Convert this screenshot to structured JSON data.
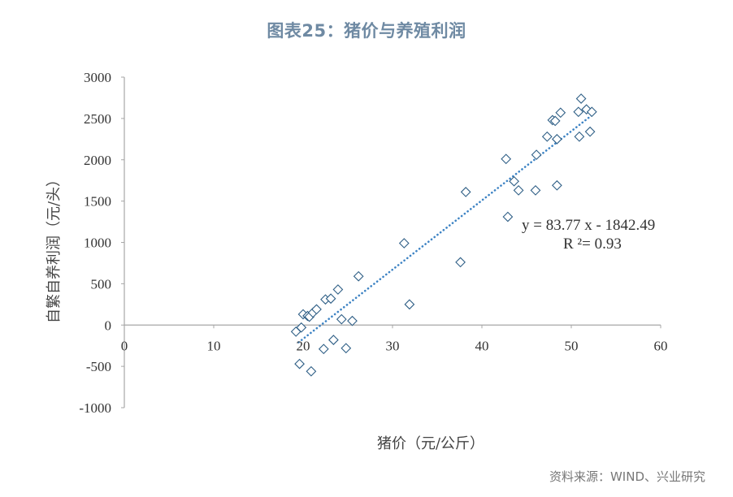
{
  "chart_data": {
    "type": "scatter",
    "title": "图表25：猪价与养殖利润",
    "xlabel": "猪价（元/公斤）",
    "ylabel": "自繁自养利润（元/头）",
    "xlim": [
      0,
      60
    ],
    "ylim": [
      -1000,
      3000
    ],
    "x_ticks": [
      0,
      10,
      20,
      30,
      40,
      50,
      60
    ],
    "y_ticks": [
      -1000,
      -500,
      0,
      500,
      1000,
      1500,
      2000,
      2500,
      3000
    ],
    "grid": false,
    "marker": "diamond-open",
    "series": [
      {
        "values": [
          {
            "x": 19.2,
            "y": -80
          },
          {
            "x": 19.6,
            "y": -470
          },
          {
            "x": 19.8,
            "y": -30
          },
          {
            "x": 20.0,
            "y": 130
          },
          {
            "x": 20.5,
            "y": 110
          },
          {
            "x": 20.7,
            "y": 100
          },
          {
            "x": 20.9,
            "y": -560
          },
          {
            "x": 21.1,
            "y": 150
          },
          {
            "x": 21.5,
            "y": 190
          },
          {
            "x": 22.3,
            "y": -290
          },
          {
            "x": 22.5,
            "y": 310
          },
          {
            "x": 23.1,
            "y": 320
          },
          {
            "x": 23.4,
            "y": -180
          },
          {
            "x": 23.9,
            "y": 430
          },
          {
            "x": 24.3,
            "y": 70
          },
          {
            "x": 24.8,
            "y": -280
          },
          {
            "x": 25.5,
            "y": 50
          },
          {
            "x": 26.2,
            "y": 590
          },
          {
            "x": 31.3,
            "y": 990
          },
          {
            "x": 31.9,
            "y": 250
          },
          {
            "x": 37.6,
            "y": 760
          },
          {
            "x": 38.2,
            "y": 1610
          },
          {
            "x": 42.7,
            "y": 2010
          },
          {
            "x": 42.9,
            "y": 1310
          },
          {
            "x": 43.6,
            "y": 1740
          },
          {
            "x": 44.1,
            "y": 1630
          },
          {
            "x": 46.0,
            "y": 1630
          },
          {
            "x": 46.1,
            "y": 2060
          },
          {
            "x": 47.3,
            "y": 2280
          },
          {
            "x": 47.9,
            "y": 2480
          },
          {
            "x": 48.2,
            "y": 2470
          },
          {
            "x": 48.4,
            "y": 2250
          },
          {
            "x": 48.4,
            "y": 1690
          },
          {
            "x": 48.8,
            "y": 2570
          },
          {
            "x": 50.8,
            "y": 2580
          },
          {
            "x": 50.9,
            "y": 2280
          },
          {
            "x": 51.1,
            "y": 2740
          },
          {
            "x": 51.7,
            "y": 2610
          },
          {
            "x": 52.1,
            "y": 2340
          },
          {
            "x": 52.3,
            "y": 2580
          }
        ]
      }
    ],
    "trendline": {
      "type": "linear",
      "slope": 83.77,
      "intercept": -1842.49,
      "x_range": [
        19.5,
        52.3
      ],
      "style": "dotted",
      "equation_text": "y = 83.77 x - 1842.49",
      "r2_text": "R ²= 0.93"
    },
    "colors": {
      "marker": "#2f5f86",
      "trendline": "#3d83c4",
      "axis": "#a6a6a6",
      "title": "#6f8aa3"
    }
  },
  "source_note": "资料来源：WIND、兴业研究"
}
